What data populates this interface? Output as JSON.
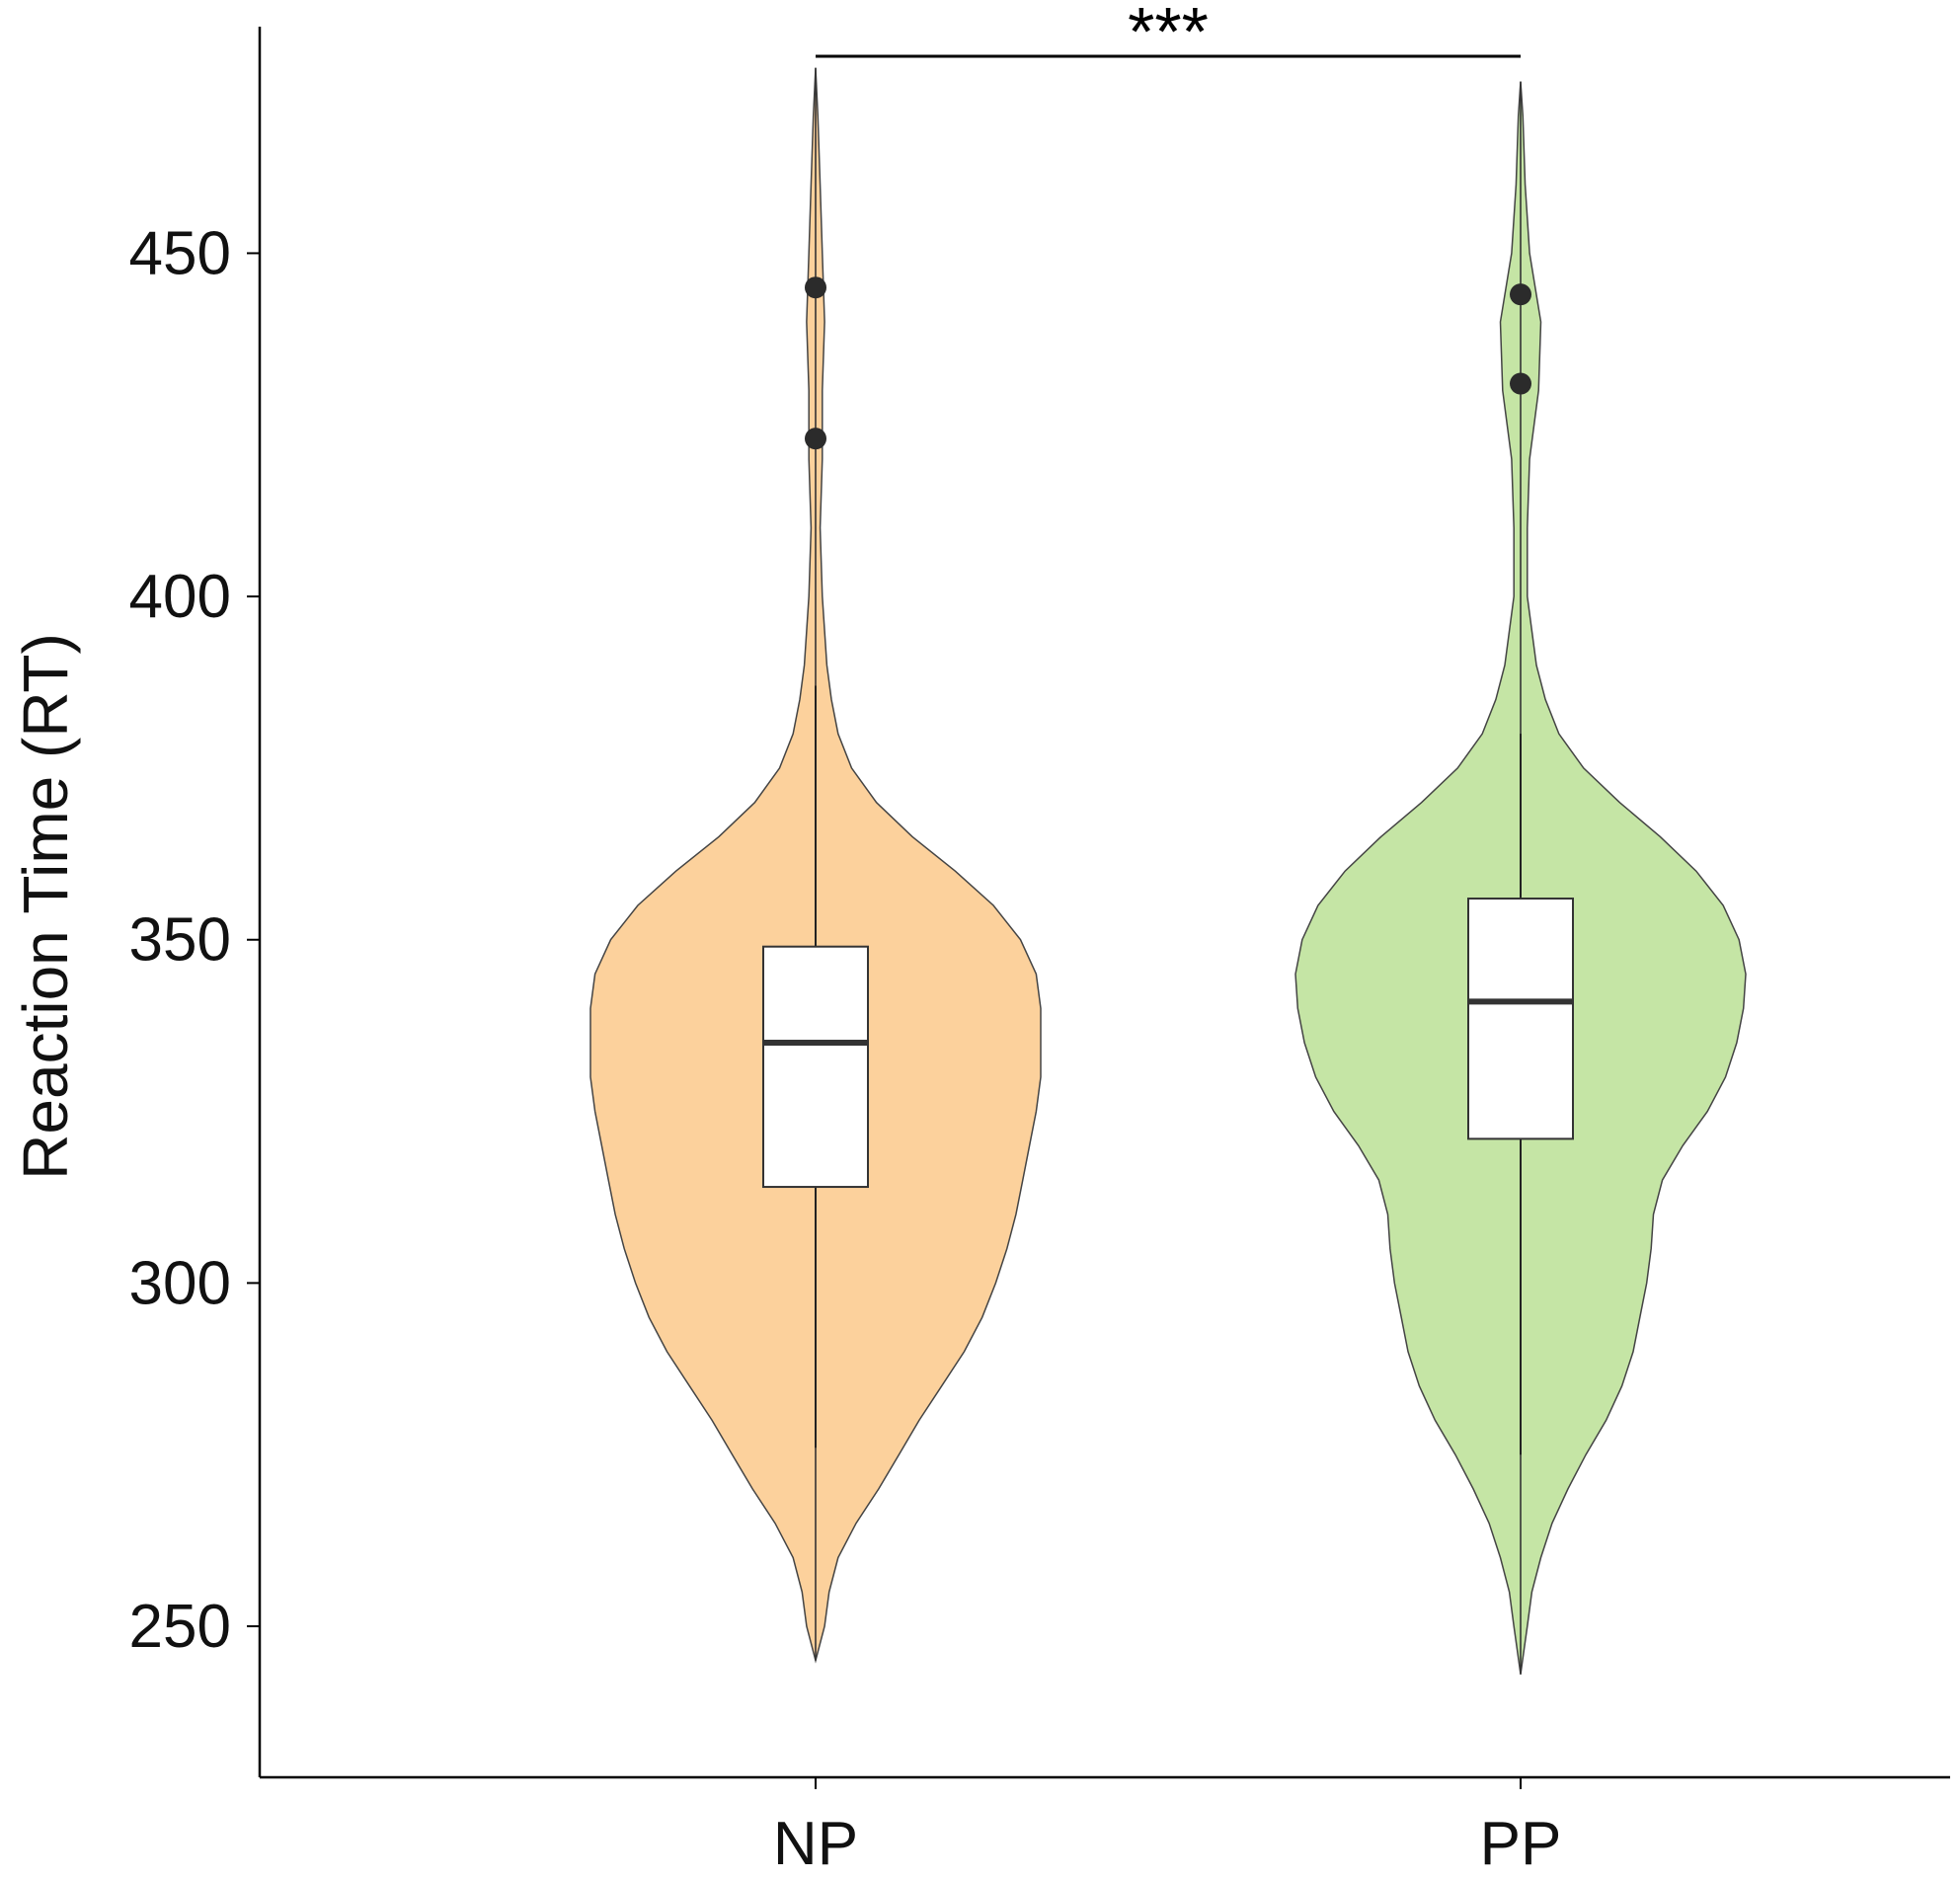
{
  "chart_data": {
    "type": "violin",
    "title": "",
    "xlabel": "",
    "ylabel": "Reaction Time (RT)",
    "ylim": [
      228,
      483
    ],
    "yticks": [
      250,
      300,
      350,
      400,
      450
    ],
    "grid": false,
    "legend": "none",
    "categories": [
      "NP",
      "PP"
    ],
    "series": [
      {
        "category": "NP",
        "color": "#fcd19c",
        "box": {
          "q1": 314,
          "median": 335,
          "q3": 349,
          "whisker_low": 276,
          "whisker_high": 387
        },
        "outliers": [
          423,
          445
        ],
        "range": [
          245,
          477
        ],
        "density": [
          [
            245,
            0.0
          ],
          [
            250,
            0.04
          ],
          [
            255,
            0.06
          ],
          [
            260,
            0.1
          ],
          [
            265,
            0.18
          ],
          [
            270,
            0.28
          ],
          [
            275,
            0.37
          ],
          [
            280,
            0.46
          ],
          [
            285,
            0.56
          ],
          [
            290,
            0.66
          ],
          [
            295,
            0.74
          ],
          [
            300,
            0.8
          ],
          [
            305,
            0.85
          ],
          [
            310,
            0.89
          ],
          [
            315,
            0.92
          ],
          [
            320,
            0.95
          ],
          [
            325,
            0.98
          ],
          [
            330,
            1.0
          ],
          [
            335,
            1.0
          ],
          [
            340,
            1.0
          ],
          [
            345,
            0.98
          ],
          [
            350,
            0.91
          ],
          [
            355,
            0.79
          ],
          [
            360,
            0.62
          ],
          [
            365,
            0.43
          ],
          [
            370,
            0.27
          ],
          [
            375,
            0.16
          ],
          [
            380,
            0.1
          ],
          [
            385,
            0.07
          ],
          [
            390,
            0.05
          ],
          [
            395,
            0.04
          ],
          [
            400,
            0.03
          ],
          [
            410,
            0.02
          ],
          [
            420,
            0.03
          ],
          [
            430,
            0.03
          ],
          [
            440,
            0.04
          ],
          [
            450,
            0.03
          ],
          [
            460,
            0.02
          ],
          [
            470,
            0.01
          ],
          [
            477,
            0.0
          ]
        ]
      },
      {
        "category": "PP",
        "color": "#c5e5a5",
        "box": {
          "q1": 321,
          "median": 341,
          "q3": 356,
          "whisker_low": 275,
          "whisker_high": 380
        },
        "outliers": [
          431,
          444
        ],
        "range": [
          243,
          475
        ],
        "density": [
          [
            243,
            0.0
          ],
          [
            250,
            0.03
          ],
          [
            255,
            0.05
          ],
          [
            260,
            0.09
          ],
          [
            265,
            0.14
          ],
          [
            270,
            0.21
          ],
          [
            275,
            0.29
          ],
          [
            280,
            0.38
          ],
          [
            285,
            0.45
          ],
          [
            290,
            0.5
          ],
          [
            295,
            0.53
          ],
          [
            300,
            0.56
          ],
          [
            305,
            0.58
          ],
          [
            310,
            0.59
          ],
          [
            315,
            0.63
          ],
          [
            320,
            0.72
          ],
          [
            325,
            0.83
          ],
          [
            330,
            0.91
          ],
          [
            335,
            0.96
          ],
          [
            340,
            0.99
          ],
          [
            345,
            1.0
          ],
          [
            350,
            0.97
          ],
          [
            355,
            0.9
          ],
          [
            360,
            0.78
          ],
          [
            365,
            0.62
          ],
          [
            370,
            0.44
          ],
          [
            375,
            0.28
          ],
          [
            380,
            0.17
          ],
          [
            385,
            0.11
          ],
          [
            390,
            0.07
          ],
          [
            395,
            0.05
          ],
          [
            400,
            0.03
          ],
          [
            410,
            0.03
          ],
          [
            420,
            0.04
          ],
          [
            430,
            0.08
          ],
          [
            440,
            0.09
          ],
          [
            450,
            0.04
          ],
          [
            460,
            0.02
          ],
          [
            470,
            0.01
          ],
          [
            475,
            0.0
          ]
        ]
      }
    ],
    "annotations": [
      {
        "type": "significance",
        "from": "NP",
        "to": "PP",
        "y": 472,
        "text": "***"
      }
    ]
  }
}
